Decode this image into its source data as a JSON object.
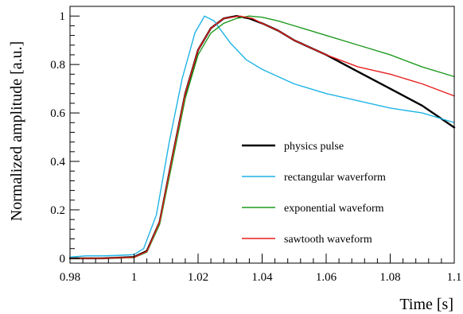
{
  "chart_data": {
    "type": "line",
    "title": "",
    "xlabel": "Time [s]",
    "ylabel": "Normalized amplitude [a.u.]",
    "xlim": [
      0.98,
      1.1
    ],
    "ylim": [
      -0.02,
      1.04
    ],
    "x_ticks": [
      "0.98",
      "1",
      "1.02",
      "1.04",
      "1.06",
      "1.08",
      "1.1"
    ],
    "y_ticks": [
      "0",
      "0.2",
      "0.4",
      "0.6",
      "0.8",
      "1"
    ],
    "grid": false,
    "legend_position": "lower-right",
    "series": [
      {
        "name": "physics pulse",
        "color": "#000000",
        "points": [
          [
            0.98,
            0.0
          ],
          [
            0.99,
            0.0
          ],
          [
            1.0,
            0.005
          ],
          [
            1.004,
            0.03
          ],
          [
            1.008,
            0.15
          ],
          [
            1.012,
            0.42
          ],
          [
            1.016,
            0.68
          ],
          [
            1.02,
            0.86
          ],
          [
            1.024,
            0.95
          ],
          [
            1.028,
            0.99
          ],
          [
            1.032,
            1.0
          ],
          [
            1.036,
            0.99
          ],
          [
            1.04,
            0.97
          ],
          [
            1.045,
            0.94
          ],
          [
            1.05,
            0.9
          ],
          [
            1.06,
            0.84
          ],
          [
            1.07,
            0.77
          ],
          [
            1.08,
            0.7
          ],
          [
            1.09,
            0.63
          ],
          [
            1.1,
            0.54
          ]
        ]
      },
      {
        "name": "rectangular waverform",
        "color": "#1fb4e6",
        "points": [
          [
            0.98,
            0.005
          ],
          [
            0.985,
            0.01
          ],
          [
            0.99,
            0.01
          ],
          [
            0.995,
            0.012
          ],
          [
            1.0,
            0.015
          ],
          [
            1.003,
            0.04
          ],
          [
            1.007,
            0.18
          ],
          [
            1.011,
            0.48
          ],
          [
            1.015,
            0.74
          ],
          [
            1.019,
            0.93
          ],
          [
            1.022,
            1.0
          ],
          [
            1.025,
            0.98
          ],
          [
            1.03,
            0.89
          ],
          [
            1.035,
            0.82
          ],
          [
            1.04,
            0.78
          ],
          [
            1.045,
            0.75
          ],
          [
            1.05,
            0.72
          ],
          [
            1.06,
            0.68
          ],
          [
            1.07,
            0.65
          ],
          [
            1.08,
            0.62
          ],
          [
            1.09,
            0.6
          ],
          [
            1.1,
            0.56
          ]
        ]
      },
      {
        "name": "exponential waveform",
        "color": "#1f9a1f",
        "points": [
          [
            0.98,
            0.0
          ],
          [
            0.99,
            0.0
          ],
          [
            1.0,
            0.003
          ],
          [
            1.004,
            0.025
          ],
          [
            1.008,
            0.14
          ],
          [
            1.012,
            0.4
          ],
          [
            1.016,
            0.66
          ],
          [
            1.02,
            0.84
          ],
          [
            1.024,
            0.93
          ],
          [
            1.028,
            0.97
          ],
          [
            1.032,
            0.99
          ],
          [
            1.036,
            1.0
          ],
          [
            1.04,
            0.995
          ],
          [
            1.045,
            0.98
          ],
          [
            1.05,
            0.96
          ],
          [
            1.06,
            0.92
          ],
          [
            1.07,
            0.88
          ],
          [
            1.08,
            0.84
          ],
          [
            1.09,
            0.79
          ],
          [
            1.1,
            0.75
          ]
        ]
      },
      {
        "name": "sawtooth waveform",
        "color": "#e61f1f",
        "points": [
          [
            0.98,
            0.0
          ],
          [
            0.99,
            0.0
          ],
          [
            1.0,
            0.004
          ],
          [
            1.004,
            0.028
          ],
          [
            1.008,
            0.15
          ],
          [
            1.012,
            0.42
          ],
          [
            1.016,
            0.68
          ],
          [
            1.02,
            0.86
          ],
          [
            1.024,
            0.95
          ],
          [
            1.028,
            0.99
          ],
          [
            1.033,
            1.0
          ],
          [
            1.037,
            0.99
          ],
          [
            1.04,
            0.97
          ],
          [
            1.045,
            0.94
          ],
          [
            1.05,
            0.9
          ],
          [
            1.06,
            0.84
          ],
          [
            1.07,
            0.79
          ],
          [
            1.08,
            0.76
          ],
          [
            1.09,
            0.72
          ],
          [
            1.1,
            0.67
          ]
        ]
      }
    ]
  }
}
